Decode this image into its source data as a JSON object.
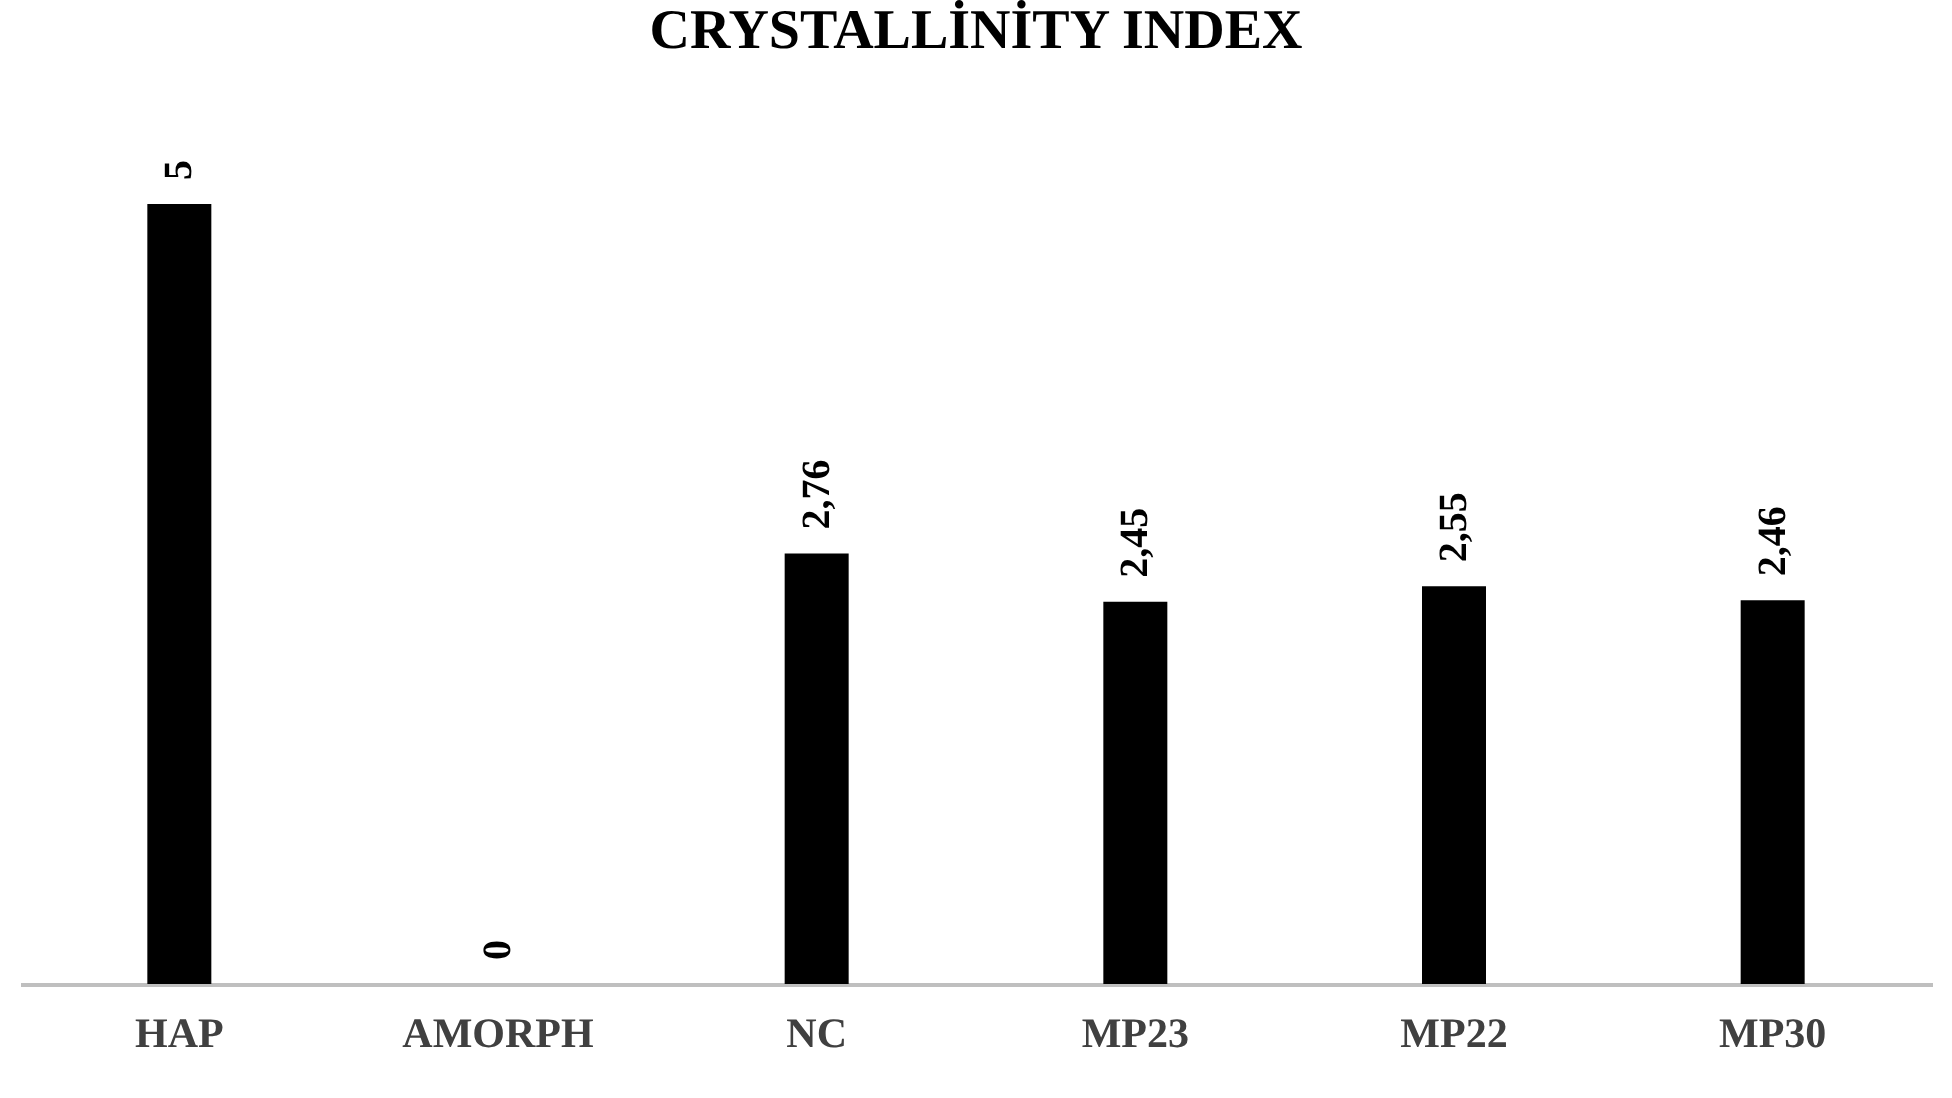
{
  "chart_data": {
    "type": "bar",
    "title": "CRYSTALLİNİTY INDEX",
    "categories": [
      "HAP",
      "AMORPH",
      "NC",
      "MP23",
      "MP22",
      "MP30"
    ],
    "values": [
      5,
      0,
      2.76,
      2.45,
      2.55,
      2.46
    ],
    "value_labels": [
      "5",
      "0",
      "2,76",
      "2,45",
      "2,55",
      "2,46"
    ],
    "color": "#000000",
    "grid": false
  }
}
